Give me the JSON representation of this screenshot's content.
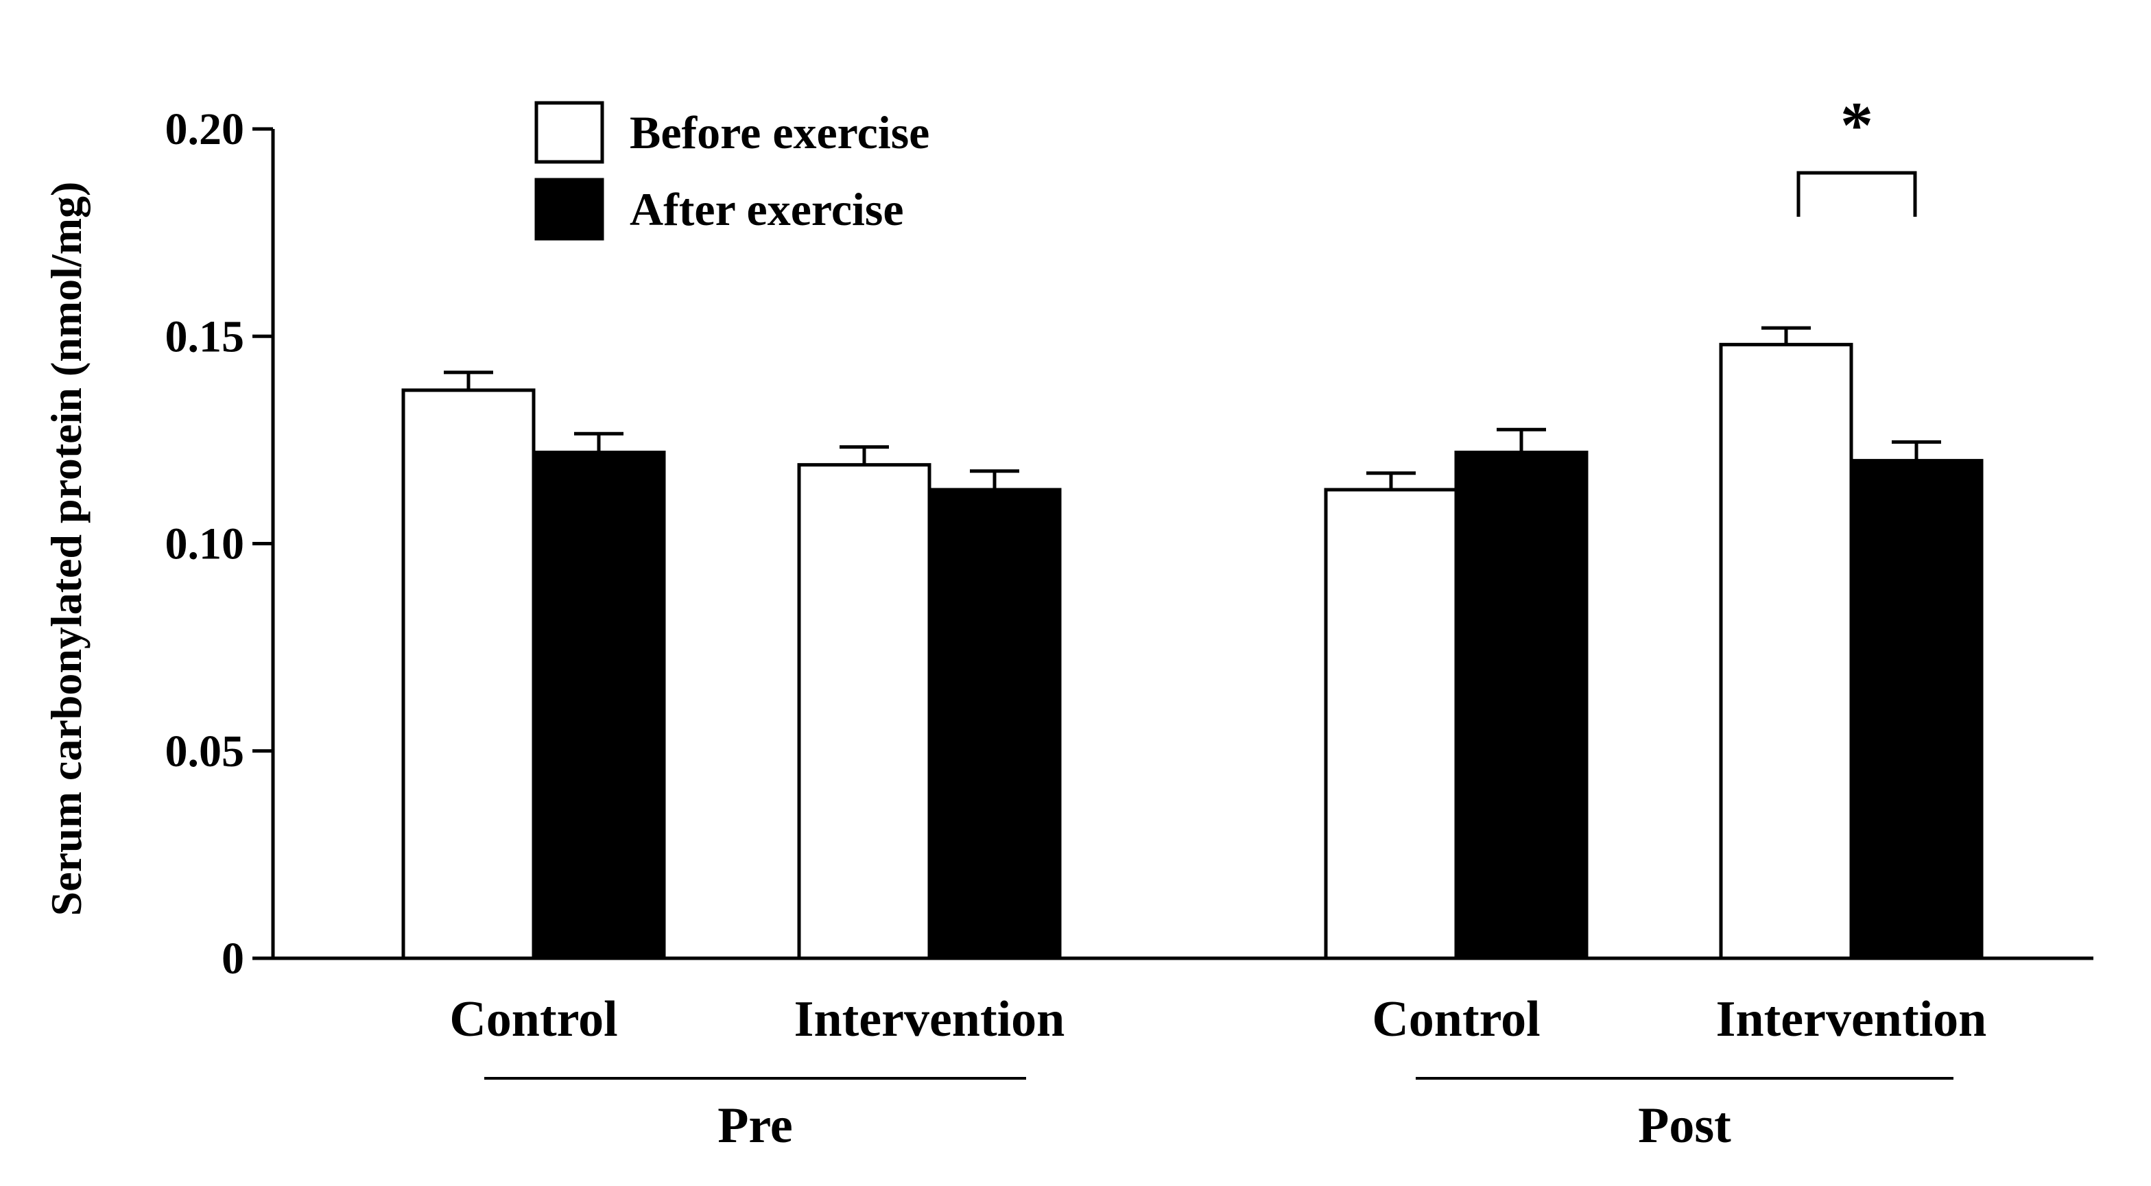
{
  "chart_data": {
    "type": "bar",
    "title": "",
    "xlabel": "",
    "ylabel": "Serum carbonylated protein (nmol/mg)",
    "ylim": [
      0,
      0.2
    ],
    "y_ticks": [
      {
        "value": 0,
        "label": "0"
      },
      {
        "value": 0.05,
        "label": "0.05"
      },
      {
        "value": 0.1,
        "label": "0.10"
      },
      {
        "value": 0.15,
        "label": "0.15"
      },
      {
        "value": 0.2,
        "label": "0.20"
      }
    ],
    "grid": false,
    "legend_position": "top-left",
    "categories": [
      "Control",
      "Intervention",
      "Control",
      "Intervention"
    ],
    "groups": [
      "Pre",
      "Pre",
      "Post",
      "Post"
    ],
    "group_labels": [
      "Pre",
      "Post"
    ],
    "series": [
      {
        "name": "Before exercise",
        "color": "#ffffff",
        "values": [
          0.137,
          0.119,
          0.113,
          0.148
        ],
        "errors": [
          0.0043,
          0.0043,
          0.004,
          0.004
        ]
      },
      {
        "name": "After exercise",
        "color": "#000000",
        "values": [
          0.122,
          0.113,
          0.122,
          0.12
        ],
        "errors": [
          0.0045,
          0.0045,
          0.0055,
          0.0045
        ]
      }
    ],
    "annotations": [
      {
        "text": "*",
        "category_index": 3
      }
    ]
  }
}
